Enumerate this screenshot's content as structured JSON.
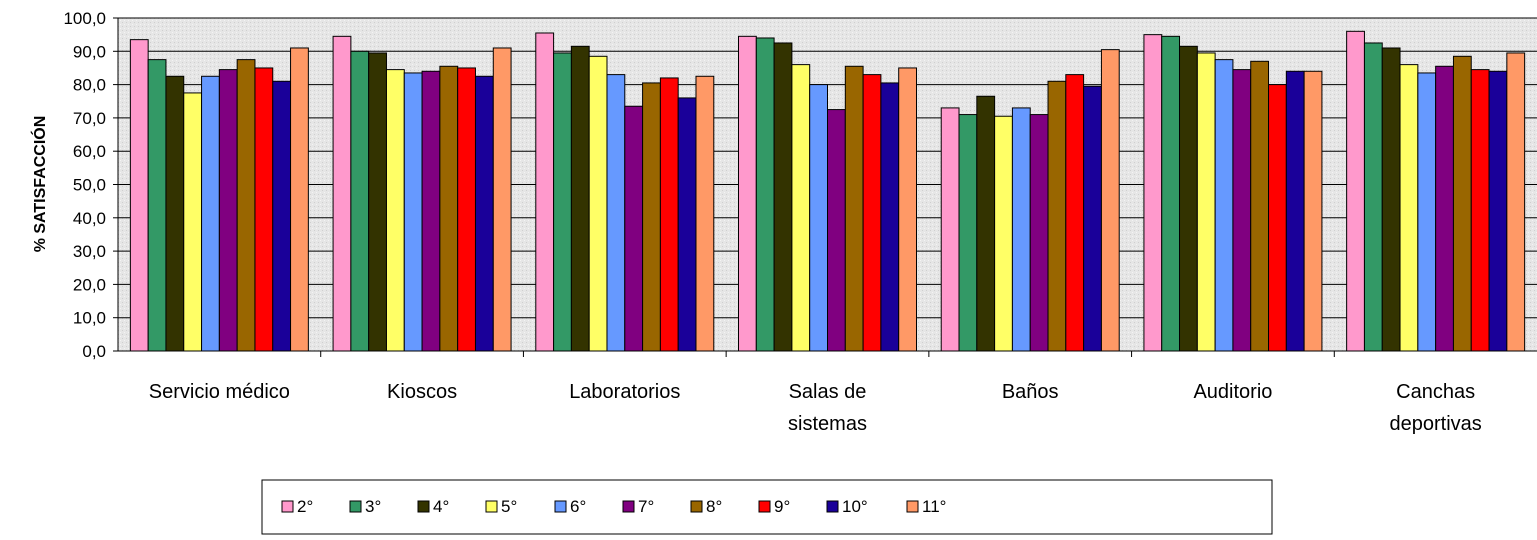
{
  "chart_data": {
    "type": "bar",
    "ylabel": "% SATISFACCIÓN",
    "xlabel": "",
    "ylim": [
      0,
      100
    ],
    "y_ticks": [
      "0,0",
      "10,0",
      "20,0",
      "30,0",
      "40,0",
      "50,0",
      "60,0",
      "70,0",
      "80,0",
      "90,0",
      "100,0"
    ],
    "grid": "horizontal",
    "legend_position": "bottom",
    "categories": [
      [
        "Servicio médico"
      ],
      [
        "Kioscos"
      ],
      [
        "Laboratorios"
      ],
      [
        "Salas de",
        "sistemas"
      ],
      [
        "Baños"
      ],
      [
        "Auditorio"
      ],
      [
        "Canchas",
        "deportivas"
      ]
    ],
    "series": [
      {
        "name": "2°",
        "color": "#ff99cc",
        "values": [
          93.5,
          94.5,
          95.5,
          94.5,
          73.0,
          95.0,
          96.0
        ]
      },
      {
        "name": "3°",
        "color": "#339966",
        "values": [
          87.5,
          90.0,
          89.5,
          94.0,
          71.0,
          94.5,
          92.5
        ]
      },
      {
        "name": "4°",
        "color": "#333300",
        "values": [
          82.5,
          89.5,
          91.5,
          92.5,
          76.5,
          91.5,
          91.0
        ]
      },
      {
        "name": "5°",
        "color": "#ffff66",
        "values": [
          77.5,
          84.5,
          88.5,
          86.0,
          70.5,
          89.5,
          86.0
        ]
      },
      {
        "name": "6°",
        "color": "#6699ff",
        "values": [
          82.5,
          83.5,
          83.0,
          80.0,
          73.0,
          87.5,
          83.5
        ]
      },
      {
        "name": "7°",
        "color": "#800080",
        "values": [
          84.5,
          84.0,
          73.5,
          72.5,
          71.0,
          84.5,
          85.5
        ]
      },
      {
        "name": "8°",
        "color": "#996600",
        "values": [
          87.5,
          85.5,
          80.5,
          85.5,
          81.0,
          87.0,
          88.5
        ]
      },
      {
        "name": "9°",
        "color": "#ff0000",
        "values": [
          85.0,
          85.0,
          82.0,
          83.0,
          83.0,
          80.0,
          84.5
        ]
      },
      {
        "name": "10°",
        "color": "#1a0099",
        "values": [
          81.0,
          82.5,
          76.0,
          80.5,
          79.5,
          84.0,
          84.0
        ]
      },
      {
        "name": "11°",
        "color": "#ff9966",
        "values": [
          91.0,
          91.0,
          82.5,
          85.0,
          90.5,
          84.0,
          89.5
        ]
      }
    ]
  }
}
